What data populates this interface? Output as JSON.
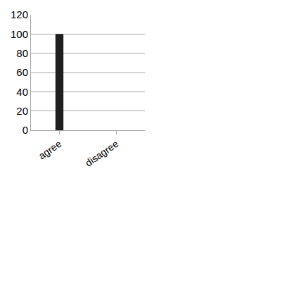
{
  "chart_data": {
    "type": "bar",
    "categories": [
      "agree",
      "disagree"
    ],
    "values": [
      100,
      0
    ],
    "color": "#1f1f1f",
    "ylim": [
      0,
      120
    ],
    "yticks": [
      0,
      20,
      40,
      60,
      80,
      100,
      120
    ],
    "grid": true
  }
}
